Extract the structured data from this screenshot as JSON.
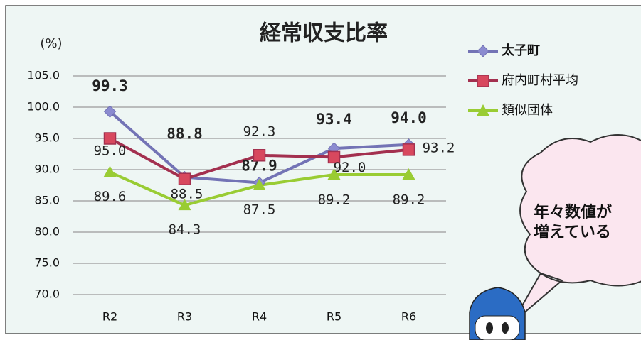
{
  "chart_data": {
    "type": "line",
    "title": "経常収支比率",
    "y_label": "(%)",
    "categories": [
      "R2",
      "R3",
      "R4",
      "R5",
      "R6"
    ],
    "series": [
      {
        "name": "太子町",
        "color": "#7373b5",
        "marker": "diamond",
        "values": [
          99.3,
          88.8,
          87.9,
          93.4,
          94.0
        ],
        "value_labels": [
          "99.3",
          "88.8",
          "87.9",
          "93.4",
          "94.0"
        ]
      },
      {
        "name": "府内町村平均",
        "color": "#a3304f",
        "marker": "square",
        "values": [
          95.0,
          88.5,
          92.3,
          92.0,
          93.2
        ],
        "value_labels": [
          "95.0",
          "88.5",
          "92.3",
          "92.0",
          "93.2"
        ]
      },
      {
        "name": "類似団体",
        "color": "#99cc33",
        "marker": "triangle",
        "values": [
          89.6,
          84.3,
          87.5,
          89.2,
          89.2
        ],
        "value_labels": [
          "89.6",
          "84.3",
          "87.5",
          "89.2",
          "89.2"
        ]
      }
    ],
    "ylim": [
      70,
      105
    ],
    "yticks": [
      {
        "value": 70,
        "label": "70.0"
      },
      {
        "value": 75,
        "label": "75.0"
      },
      {
        "value": 80,
        "label": "80.0"
      },
      {
        "value": 85,
        "label": "85.0"
      },
      {
        "value": 90,
        "label": "90.0"
      },
      {
        "value": 95,
        "label": "95.0"
      },
      {
        "value": 100,
        "label": "100.0"
      },
      {
        "value": 105,
        "label": "105.0"
      }
    ],
    "grid": true,
    "legend": "top-right",
    "annotation": [
      "年々数値が",
      "増えている"
    ]
  }
}
